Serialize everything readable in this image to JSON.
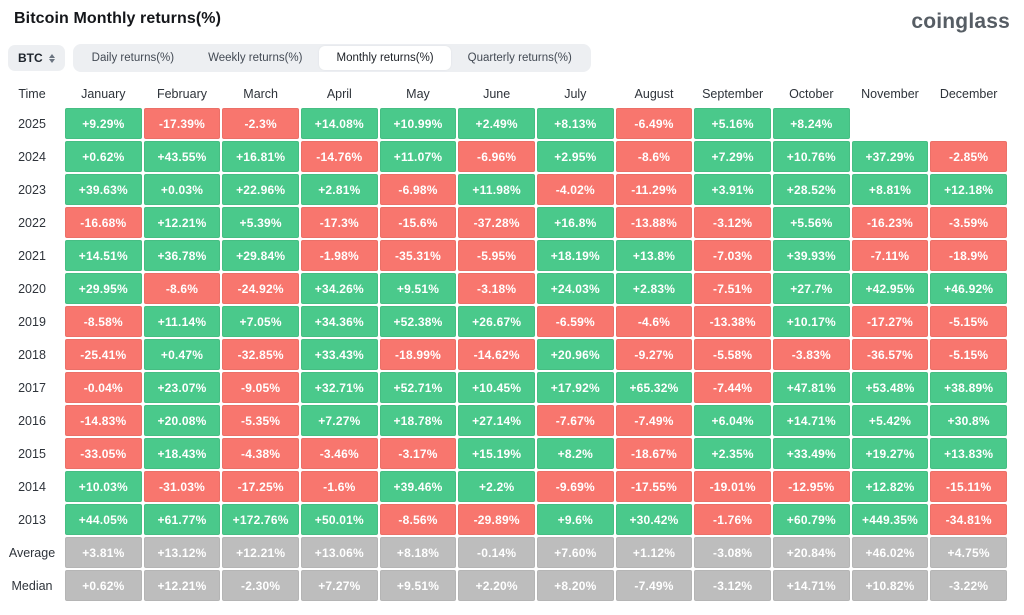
{
  "header": {
    "title": "Bitcoin Monthly returns(%)",
    "logo": "coinglass"
  },
  "controls": {
    "symbol": "BTC",
    "tabs": [
      {
        "label": "Daily returns(%)",
        "active": false
      },
      {
        "label": "Weekly returns(%)",
        "active": false
      },
      {
        "label": "Monthly returns(%)",
        "active": true
      },
      {
        "label": "Quarterly returns(%)",
        "active": false
      }
    ]
  },
  "table": {
    "time_label": "Time"
  },
  "colors": {
    "positive": "#4AC98B",
    "negative": "#F8766E",
    "neutral": "#BDBDBD",
    "cell_text": "#FFFFFF"
  },
  "chart_data": {
    "type": "heatmap",
    "title": "Bitcoin Monthly returns(%)",
    "value_format": "percent",
    "columns": [
      "January",
      "February",
      "March",
      "April",
      "May",
      "June",
      "July",
      "August",
      "September",
      "October",
      "November",
      "December"
    ],
    "rows": [
      {
        "label": "2025",
        "kind": "year",
        "values": [
          "+9.29%",
          "-17.39%",
          "-2.3%",
          "+14.08%",
          "+10.99%",
          "+2.49%",
          "+8.13%",
          "-6.49%",
          "+5.16%",
          "+8.24%",
          null,
          null
        ]
      },
      {
        "label": "2024",
        "kind": "year",
        "values": [
          "+0.62%",
          "+43.55%",
          "+16.81%",
          "-14.76%",
          "+11.07%",
          "-6.96%",
          "+2.95%",
          "-8.6%",
          "+7.29%",
          "+10.76%",
          "+37.29%",
          "-2.85%"
        ]
      },
      {
        "label": "2023",
        "kind": "year",
        "values": [
          "+39.63%",
          "+0.03%",
          "+22.96%",
          "+2.81%",
          "-6.98%",
          "+11.98%",
          "-4.02%",
          "-11.29%",
          "+3.91%",
          "+28.52%",
          "+8.81%",
          "+12.18%"
        ]
      },
      {
        "label": "2022",
        "kind": "year",
        "values": [
          "-16.68%",
          "+12.21%",
          "+5.39%",
          "-17.3%",
          "-15.6%",
          "-37.28%",
          "+16.8%",
          "-13.88%",
          "-3.12%",
          "+5.56%",
          "-16.23%",
          "-3.59%"
        ]
      },
      {
        "label": "2021",
        "kind": "year",
        "values": [
          "+14.51%",
          "+36.78%",
          "+29.84%",
          "-1.98%",
          "-35.31%",
          "-5.95%",
          "+18.19%",
          "+13.8%",
          "-7.03%",
          "+39.93%",
          "-7.11%",
          "-18.9%"
        ]
      },
      {
        "label": "2020",
        "kind": "year",
        "values": [
          "+29.95%",
          "-8.6%",
          "-24.92%",
          "+34.26%",
          "+9.51%",
          "-3.18%",
          "+24.03%",
          "+2.83%",
          "-7.51%",
          "+27.7%",
          "+42.95%",
          "+46.92%"
        ]
      },
      {
        "label": "2019",
        "kind": "year",
        "values": [
          "-8.58%",
          "+11.14%",
          "+7.05%",
          "+34.36%",
          "+52.38%",
          "+26.67%",
          "-6.59%",
          "-4.6%",
          "-13.38%",
          "+10.17%",
          "-17.27%",
          "-5.15%"
        ]
      },
      {
        "label": "2018",
        "kind": "year",
        "values": [
          "-25.41%",
          "+0.47%",
          "-32.85%",
          "+33.43%",
          "-18.99%",
          "-14.62%",
          "+20.96%",
          "-9.27%",
          "-5.58%",
          "-3.83%",
          "-36.57%",
          "-5.15%"
        ]
      },
      {
        "label": "2017",
        "kind": "year",
        "values": [
          "-0.04%",
          "+23.07%",
          "-9.05%",
          "+32.71%",
          "+52.71%",
          "+10.45%",
          "+17.92%",
          "+65.32%",
          "-7.44%",
          "+47.81%",
          "+53.48%",
          "+38.89%"
        ]
      },
      {
        "label": "2016",
        "kind": "year",
        "values": [
          "-14.83%",
          "+20.08%",
          "-5.35%",
          "+7.27%",
          "+18.78%",
          "+27.14%",
          "-7.67%",
          "-7.49%",
          "+6.04%",
          "+14.71%",
          "+5.42%",
          "+30.8%"
        ]
      },
      {
        "label": "2015",
        "kind": "year",
        "values": [
          "-33.05%",
          "+18.43%",
          "-4.38%",
          "-3.46%",
          "-3.17%",
          "+15.19%",
          "+8.2%",
          "-18.67%",
          "+2.35%",
          "+33.49%",
          "+19.27%",
          "+13.83%"
        ]
      },
      {
        "label": "2014",
        "kind": "year",
        "values": [
          "+10.03%",
          "-31.03%",
          "-17.25%",
          "-1.6%",
          "+39.46%",
          "+2.2%",
          "-9.69%",
          "-17.55%",
          "-19.01%",
          "-12.95%",
          "+12.82%",
          "-15.11%"
        ]
      },
      {
        "label": "2013",
        "kind": "year",
        "values": [
          "+44.05%",
          "+61.77%",
          "+172.76%",
          "+50.01%",
          "-8.56%",
          "-29.89%",
          "+9.6%",
          "+30.42%",
          "-1.76%",
          "+60.79%",
          "+449.35%",
          "-34.81%"
        ]
      },
      {
        "label": "Average",
        "kind": "summary",
        "values": [
          "+3.81%",
          "+13.12%",
          "+12.21%",
          "+13.06%",
          "+8.18%",
          "-0.14%",
          "+7.60%",
          "+1.12%",
          "-3.08%",
          "+20.84%",
          "+46.02%",
          "+4.75%"
        ]
      },
      {
        "label": "Median",
        "kind": "summary",
        "values": [
          "+0.62%",
          "+12.21%",
          "-2.30%",
          "+7.27%",
          "+9.51%",
          "+2.20%",
          "+8.20%",
          "-7.49%",
          "-3.12%",
          "+14.71%",
          "+10.82%",
          "-3.22%"
        ]
      }
    ]
  }
}
